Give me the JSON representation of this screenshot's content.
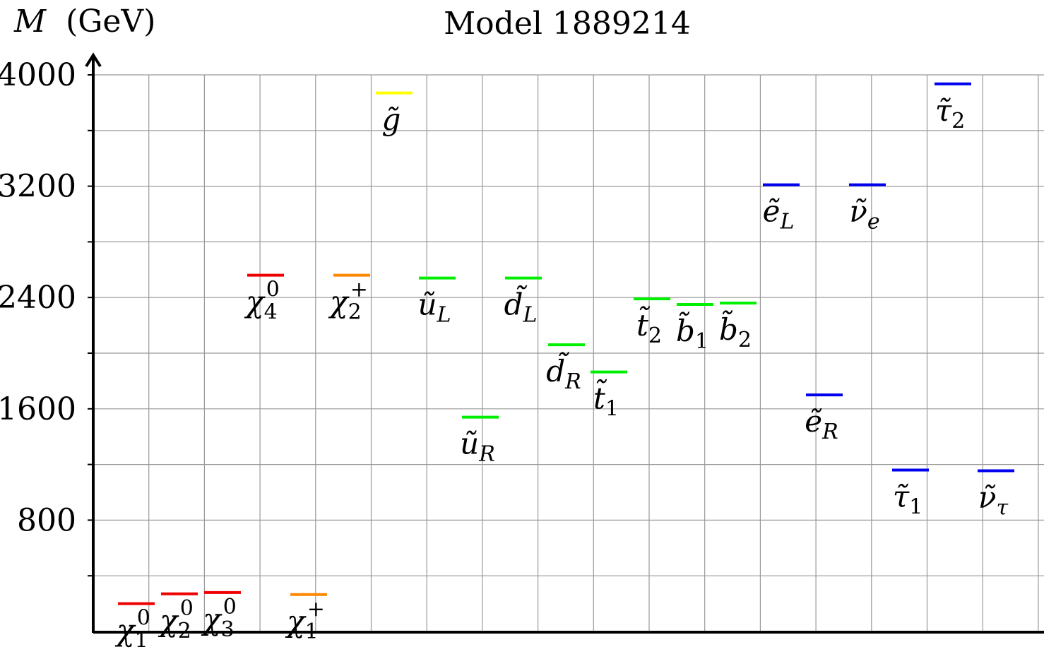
{
  "chart_data": {
    "type": "mass-spectrum",
    "title": "Model 1889214",
    "ylabel": "M (GeV)",
    "ylabel_var": "M",
    "ylabel_unit": "(GeV)",
    "ylim": [
      0,
      4000
    ],
    "yticks": [
      800,
      1600,
      2400,
      3200,
      4000
    ],
    "ytick_labels": [
      "800",
      "1600",
      "2400",
      "3200",
      "4000"
    ],
    "minor_ticks": [
      400,
      1200,
      2000,
      2800,
      3600
    ],
    "grid": true,
    "particles": [
      {
        "base": "χ",
        "tilde": false,
        "sub": "1",
        "sup": "0",
        "mass": 200,
        "column": 1,
        "color": "#ee0000"
      },
      {
        "base": "χ",
        "tilde": false,
        "sub": "2",
        "sup": "0",
        "mass": 270,
        "column": 2,
        "color": "#ee0000"
      },
      {
        "base": "χ",
        "tilde": false,
        "sub": "3",
        "sup": "0",
        "mass": 280,
        "column": 3,
        "color": "#ee0000"
      },
      {
        "base": "χ",
        "tilde": false,
        "sub": "4",
        "sup": "0",
        "mass": 2560,
        "column": 4,
        "color": "#ee0000"
      },
      {
        "base": "χ",
        "tilde": false,
        "sub": "1",
        "sup": "+",
        "mass": 265,
        "column": 5,
        "color": "#ff8800"
      },
      {
        "base": "χ",
        "tilde": false,
        "sub": "2",
        "sup": "+",
        "mass": 2560,
        "column": 6,
        "color": "#ff8800"
      },
      {
        "base": "g",
        "tilde": true,
        "sub": "",
        "sup": "",
        "mass": 3870,
        "column": 7,
        "color": "#ffff00"
      },
      {
        "base": "u",
        "tilde": true,
        "sub": "L",
        "sup": "",
        "mass": 2540,
        "column": 8,
        "color": "#00ee00"
      },
      {
        "base": "u",
        "tilde": true,
        "sub": "R",
        "sup": "",
        "mass": 1540,
        "column": 9,
        "color": "#00ee00"
      },
      {
        "base": "d",
        "tilde": true,
        "sub": "L",
        "sup": "",
        "mass": 2540,
        "column": 10,
        "color": "#00ee00"
      },
      {
        "base": "d",
        "tilde": true,
        "sub": "R",
        "sup": "",
        "mass": 2060,
        "column": 11,
        "color": "#00ee00"
      },
      {
        "base": "t",
        "tilde": true,
        "sub": "1",
        "sup": "",
        "mass": 1865,
        "column": 12,
        "color": "#00ee00"
      },
      {
        "base": "t",
        "tilde": true,
        "sub": "2",
        "sup": "",
        "mass": 2390,
        "column": 13,
        "color": "#00ee00"
      },
      {
        "base": "b",
        "tilde": true,
        "sub": "1",
        "sup": "",
        "mass": 2350,
        "column": 14,
        "color": "#00ee00"
      },
      {
        "base": "b",
        "tilde": true,
        "sub": "2",
        "sup": "",
        "mass": 2360,
        "column": 15,
        "color": "#00ee00"
      },
      {
        "base": "e",
        "tilde": true,
        "sub": "L",
        "sup": "",
        "mass": 3210,
        "column": 16,
        "color": "#0000ee"
      },
      {
        "base": "e",
        "tilde": true,
        "sub": "R",
        "sup": "",
        "mass": 1700,
        "column": 17,
        "color": "#0000ee"
      },
      {
        "base": "ν",
        "tilde": true,
        "sub": "e",
        "sup": "",
        "mass": 3210,
        "column": 18,
        "color": "#0000ee"
      },
      {
        "base": "τ",
        "tilde": true,
        "sub": "1",
        "sup": "",
        "mass": 1160,
        "column": 19,
        "color": "#0000ee"
      },
      {
        "base": "τ",
        "tilde": true,
        "sub": "2",
        "sup": "",
        "mass": 3935,
        "column": 20,
        "color": "#0000ee"
      },
      {
        "base": "ν",
        "tilde": true,
        "sub": "τ",
        "sup": "",
        "mass": 1155,
        "column": 21,
        "color": "#0000ee"
      }
    ]
  }
}
